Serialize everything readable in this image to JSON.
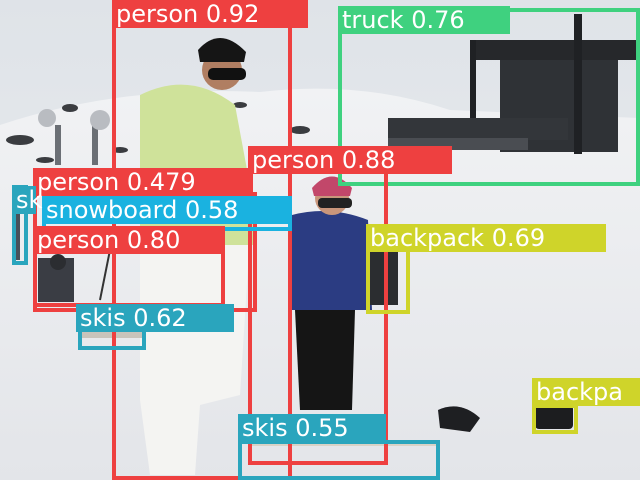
{
  "detections": [
    {
      "label": "person",
      "score": "0.92",
      "color": "#ee4040"
    },
    {
      "label": "truck",
      "score": "0.76",
      "color": "#3fd17f"
    },
    {
      "label": "person",
      "score": "0.88",
      "color": "#ee4040"
    },
    {
      "label": "person",
      "score": "0.479",
      "color": "#ee4040"
    },
    {
      "label": "snowboard",
      "score": "0.58",
      "color": "#1ab2e0"
    },
    {
      "label": "person",
      "score": "0.80",
      "color": "#ee4040"
    },
    {
      "label": "backpack",
      "score": "0.69",
      "color": "#cfd42a"
    },
    {
      "label": "skis",
      "score": "0.62",
      "color": "#2aa5bd"
    },
    {
      "label": "skis",
      "score": "0.55",
      "color": "#2aa5bd"
    },
    {
      "label": "backpa",
      "score": "",
      "color": "#cfd42a"
    },
    {
      "label": "sk",
      "score": "",
      "color": "#2aa5bd"
    }
  ]
}
